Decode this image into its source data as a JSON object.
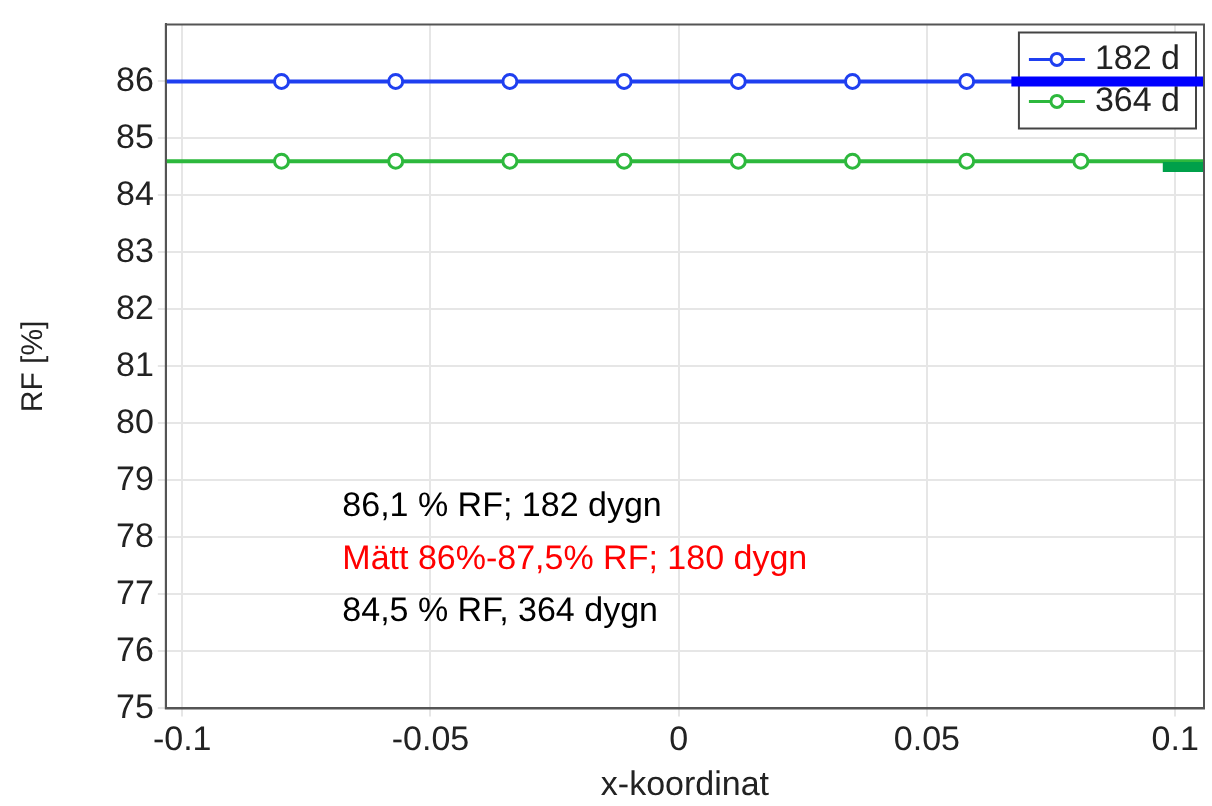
{
  "chart_data": {
    "type": "line",
    "xlabel": "x-koordinat",
    "ylabel": "RF [%]",
    "xlim": [
      -0.1033,
      0.1058
    ],
    "ylim": [
      75,
      87
    ],
    "xticks": [
      -0.1,
      -0.05,
      0,
      0.05,
      0.1
    ],
    "yticks": [
      75,
      76,
      77,
      78,
      79,
      80,
      81,
      82,
      83,
      84,
      85,
      86
    ],
    "grid": true,
    "legend": "top right",
    "marker": "circle",
    "line_style": "solid",
    "series": [
      {
        "name": "182 d",
        "color": "#1f3ff0",
        "x": [
          -0.1033,
          -0.08,
          -0.057,
          -0.034,
          -0.011,
          0.012,
          0.035,
          0.058,
          0.081,
          0.1058
        ],
        "values": [
          86,
          86,
          86,
          86,
          86,
          86,
          86,
          86,
          null,
          86
        ]
      },
      {
        "name": "364 d",
        "color": "#2db83d",
        "x": [
          -0.1033,
          -0.08,
          -0.057,
          -0.034,
          -0.011,
          0.012,
          0.035,
          0.058,
          0.081,
          0.1058
        ],
        "values": [
          84.6,
          84.6,
          84.6,
          84.6,
          84.6,
          84.6,
          84.6,
          84.6,
          84.6,
          84.6
        ]
      },
      {
        "color": "#0000ff",
        "marker": "none",
        "x": [
          0.067,
          0.1058
        ],
        "values": [
          86,
          86
        ]
      },
      {
        "color": "#00a04a",
        "marker": "none",
        "x": [
          0.0975,
          0.1058
        ],
        "values": [
          84.5,
          84.5
        ]
      }
    ],
    "annotations": [
      "86,1 % RF; 182 dygn",
      "Mätt 86%-87,5% RF; 180 dygn",
      "84,5 % RF, 364 dygn"
    ]
  }
}
